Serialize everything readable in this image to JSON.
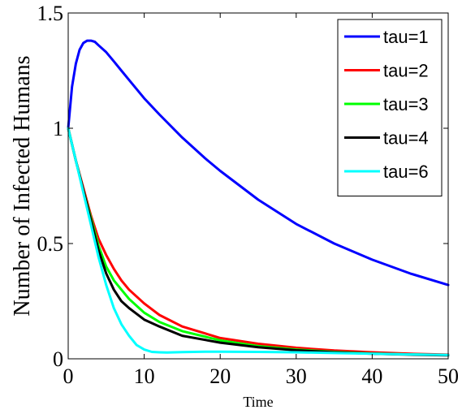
{
  "chart_data": {
    "type": "line",
    "title": "",
    "xlabel": "Time",
    "ylabel": "Number of Infected Humans",
    "xlim": [
      0,
      50
    ],
    "ylim": [
      0,
      1.5
    ],
    "x_ticks": [
      "0",
      "10",
      "20",
      "30",
      "40",
      "50"
    ],
    "y_ticks": [
      "0",
      "0.5",
      "1",
      "1.5"
    ],
    "grid": false,
    "legend_position": "top-right",
    "series": [
      {
        "name": "tau=1",
        "color": "#0000ff",
        "x": [
          0,
          0.5,
          1,
          1.5,
          2,
          2.5,
          3,
          3.5,
          4,
          5,
          6,
          7,
          8,
          10,
          12,
          15,
          18,
          20,
          25,
          30,
          35,
          40,
          45,
          50
        ],
        "y": [
          1.0,
          1.18,
          1.28,
          1.34,
          1.37,
          1.38,
          1.38,
          1.375,
          1.36,
          1.33,
          1.29,
          1.25,
          1.21,
          1.13,
          1.06,
          0.96,
          0.87,
          0.815,
          0.69,
          0.585,
          0.5,
          0.43,
          0.37,
          0.32
        ]
      },
      {
        "name": "tau=2",
        "color": "#ff0000",
        "x": [
          0,
          1,
          2,
          3,
          4,
          5,
          6,
          7,
          8,
          10,
          12,
          15,
          20,
          25,
          30,
          35,
          40,
          45,
          50
        ],
        "y": [
          1.0,
          0.86,
          0.74,
          0.62,
          0.52,
          0.45,
          0.39,
          0.34,
          0.3,
          0.24,
          0.19,
          0.14,
          0.09,
          0.065,
          0.048,
          0.036,
          0.028,
          0.022,
          0.018
        ]
      },
      {
        "name": "tau=3",
        "color": "#00ff00",
        "x": [
          0,
          1,
          2,
          3,
          4,
          5,
          6,
          7,
          8,
          10,
          12,
          15,
          20,
          25,
          30,
          35,
          40,
          45,
          50
        ],
        "y": [
          1.0,
          0.86,
          0.73,
          0.61,
          0.49,
          0.4,
          0.34,
          0.3,
          0.26,
          0.2,
          0.16,
          0.12,
          0.08,
          0.055,
          0.04,
          0.03,
          0.023,
          0.019,
          0.016
        ]
      },
      {
        "name": "tau=4",
        "color": "#000000",
        "x": [
          0,
          1,
          2,
          3,
          4,
          5,
          6,
          7,
          8,
          10,
          12,
          15,
          20,
          25,
          30,
          35,
          40,
          45,
          50
        ],
        "y": [
          1.0,
          0.86,
          0.73,
          0.6,
          0.47,
          0.37,
          0.3,
          0.25,
          0.22,
          0.17,
          0.14,
          0.1,
          0.07,
          0.05,
          0.037,
          0.028,
          0.022,
          0.018,
          0.015
        ]
      },
      {
        "name": "tau=6",
        "color": "#00ffff",
        "x": [
          0,
          1,
          2,
          3,
          4,
          5,
          6,
          7,
          8,
          9,
          10,
          11,
          12,
          13,
          15,
          18,
          20,
          25,
          30,
          35,
          40,
          45,
          50
        ],
        "y": [
          1.0,
          0.86,
          0.72,
          0.58,
          0.44,
          0.32,
          0.22,
          0.15,
          0.1,
          0.06,
          0.04,
          0.03,
          0.028,
          0.027,
          0.029,
          0.031,
          0.031,
          0.03,
          0.028,
          0.025,
          0.022,
          0.019,
          0.017
        ]
      }
    ]
  }
}
